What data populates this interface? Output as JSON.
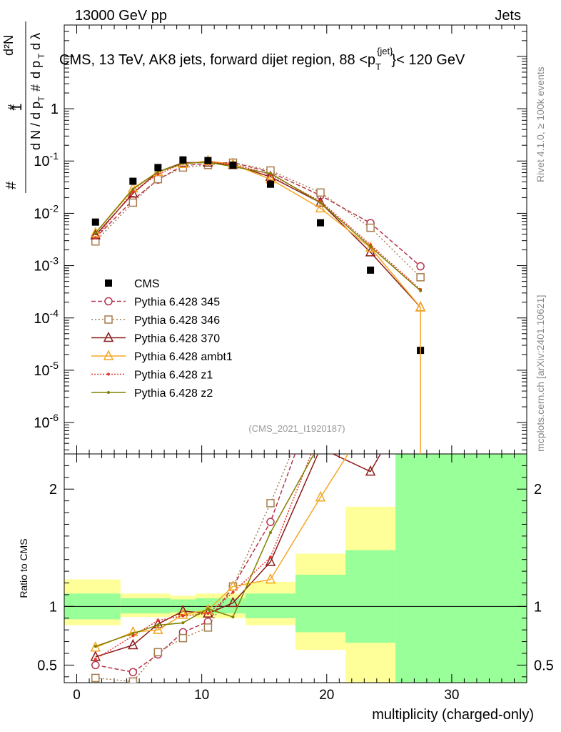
{
  "header": {
    "left": "13000 GeV pp",
    "right": "Jets"
  },
  "side_labels": {
    "rivet": "Rivet 4.1.0, ≥ 100k events",
    "mcplots": "mcplots.cern.ch [arXiv:2401.10621]"
  },
  "chart_data": {
    "type": "scatter",
    "title": "CMS, 13 TeV, AK8 jets, forward dijet region, 88 < pT jet < 120 GeV",
    "title_main": "CMS, 13 TeV, AK8 jets, forward dijet region, 88 <p",
    "title_sub": "T",
    "title_sup": "{jet}",
    "title_tail": "}< 120 GeV",
    "analysis_id": "(CMS_2021_I1920187)",
    "xlabel": "multiplicity (charged-only)",
    "ylabel_main": "1/dN/dpT dN²/dpT dλ (#)",
    "ylabel_ratio": "Ratio to CMS",
    "xlim": [
      -1,
      36
    ],
    "ylim_main_log10": [
      -6.6,
      1.6
    ],
    "ylim_ratio": [
      0.35,
      2.3
    ],
    "x_ticks": [
      "0",
      "10",
      "20",
      "30"
    ],
    "y_ticks_main": [
      "10^-6",
      "10^-5",
      "10^-4",
      "10^-3",
      "10^-2",
      "10^-1",
      "1"
    ],
    "y_ticks_ratio": [
      "0.5",
      "1",
      "2"
    ],
    "cms": {
      "name": "CMS",
      "x": [
        1.5,
        4.5,
        6.5,
        8.5,
        10.5,
        12.5,
        15.5,
        19.5,
        23.5,
        27.5
      ],
      "y": [
        0.0068,
        0.041,
        0.075,
        0.105,
        0.102,
        0.083,
        0.036,
        0.0066,
        0.00082,
        2.4e-05
      ],
      "ratio_bins": [
        {
          "x": [
            -1,
            3.5
          ],
          "green": [
            0.89,
            1.11
          ],
          "yellow": [
            0.84,
            1.23
          ]
        },
        {
          "x": [
            3.5,
            7.5
          ],
          "green": [
            0.94,
            1.07
          ],
          "yellow": [
            0.91,
            1.11
          ]
        },
        {
          "x": [
            7.5,
            9.5
          ],
          "green": [
            0.95,
            1.06
          ],
          "yellow": [
            0.92,
            1.09
          ]
        },
        {
          "x": [
            9.5,
            13.5
          ],
          "green": [
            0.94,
            1.07
          ],
          "yellow": [
            0.9,
            1.11
          ]
        },
        {
          "x": [
            13.5,
            17.5
          ],
          "green": [
            0.9,
            1.11
          ],
          "yellow": [
            0.84,
            1.21
          ]
        },
        {
          "x": [
            17.5,
            21.5
          ],
          "green": [
            0.78,
            1.27
          ],
          "yellow": [
            0.63,
            1.45
          ]
        },
        {
          "x": [
            21.5,
            25.5
          ],
          "green": [
            0.69,
            1.48
          ],
          "yellow": [
            0.35,
            1.85
          ]
        },
        {
          "x": [
            25.5,
            36
          ],
          "green": [
            0.35,
            2.3
          ],
          "yellow": [
            0.35,
            2.3
          ]
        }
      ]
    },
    "series": [
      {
        "name": "Pythia 6.428 345",
        "color": "#b5334e",
        "dash": "6,3",
        "marker": "circle",
        "x": [
          1.5,
          4.5,
          6.5,
          8.5,
          10.5,
          12.5,
          15.5,
          19.5,
          23.5,
          27.5
        ],
        "y": [
          0.0034,
          0.018,
          0.044,
          0.082,
          0.089,
          0.094,
          0.061,
          0.022,
          0.0065,
          0.00097
        ],
        "ratio": [
          0.5,
          0.44,
          0.59,
          0.78,
          0.87,
          1.17,
          1.72,
          3.3,
          7.9,
          40
        ]
      },
      {
        "name": "Pythia 6.428 346",
        "color": "#a67c4d",
        "dash": "2,3",
        "marker": "square",
        "x": [
          1.5,
          4.5,
          6.5,
          8.5,
          10.5,
          12.5,
          15.5,
          19.5,
          23.5,
          27.5
        ],
        "y": [
          0.0029,
          0.016,
          0.045,
          0.075,
          0.084,
          0.093,
          0.066,
          0.025,
          0.0053,
          0.0006
        ],
        "ratio": [
          0.39,
          0.36,
          0.61,
          0.73,
          0.82,
          1.17,
          1.88,
          3.8,
          6.5,
          25
        ]
      },
      {
        "name": "Pythia 6.428 370",
        "color": "#8b1a1a",
        "dash": "",
        "marker": "triangle",
        "x": [
          1.5,
          4.5,
          6.5,
          8.5,
          10.5,
          12.5,
          15.5,
          19.5,
          23.5,
          27.5
        ],
        "y": [
          0.0038,
          0.024,
          0.062,
          0.093,
          0.094,
          0.084,
          0.05,
          0.016,
          0.0018,
          0.00016
        ],
        "ratio": [
          0.57,
          0.67,
          0.85,
          0.96,
          0.94,
          1.03,
          1.38,
          2.35,
          2.15,
          6.5
        ]
      },
      {
        "name": "Pythia 6.428 ambt1",
        "color": "#f5a623",
        "dash": "",
        "marker": "triangle",
        "x": [
          1.5,
          4.5,
          6.5,
          8.5,
          10.5,
          12.5,
          15.5,
          19.5,
          23.5,
          27.5
        ],
        "y": [
          0.0042,
          0.03,
          0.062,
          0.088,
          0.1,
          0.086,
          0.045,
          0.0125,
          0.0022,
          0.00016
        ],
        "ratio": [
          0.65,
          0.78,
          0.8,
          0.93,
          0.97,
          1.17,
          1.23,
          1.93,
          2.6,
          6.5
        ]
      },
      {
        "name": "Pythia 6.428 z1",
        "color": "#e8352b",
        "dash": "2,2",
        "marker": "dot",
        "x": [
          1.5,
          4.5,
          6.5,
          8.5,
          10.5,
          12.5,
          15.5,
          19.5,
          23.5,
          27.5
        ],
        "y": [
          0.0034,
          0.026,
          0.056,
          0.09,
          0.096,
          0.088,
          0.055,
          0.017,
          0.0025,
          0.00035
        ],
        "ratio": [
          0.55,
          0.75,
          0.88,
          0.92,
          0.94,
          1.12,
          1.42,
          2.5,
          3.2,
          14
        ]
      },
      {
        "name": "Pythia 6.428 z2",
        "color": "#808000",
        "dash": "",
        "marker": "dot",
        "x": [
          1.5,
          4.5,
          6.5,
          8.5,
          10.5,
          12.5,
          15.5,
          19.5,
          23.5,
          27.5
        ],
        "y": [
          0.0042,
          0.029,
          0.062,
          0.09,
          0.095,
          0.078,
          0.058,
          0.016,
          0.0023,
          0.00033
        ],
        "ratio": [
          0.66,
          0.77,
          0.84,
          0.86,
          0.98,
          0.91,
          1.63,
          2.4,
          2.9,
          13.5
        ]
      }
    ]
  }
}
